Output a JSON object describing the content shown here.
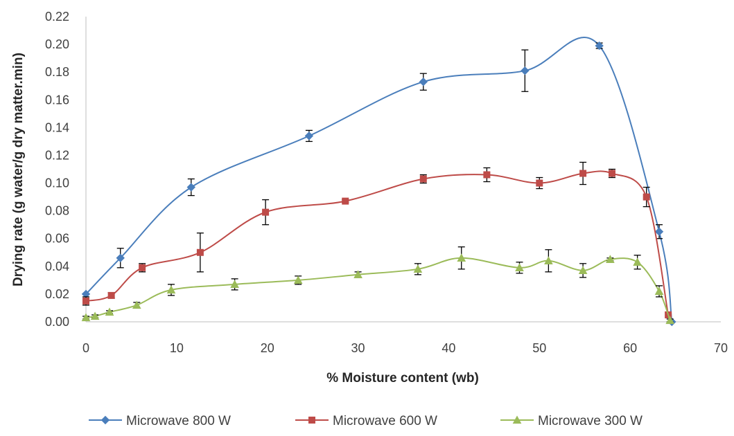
{
  "chart_data": {
    "type": "scatter",
    "title": "",
    "xlabel": "% Moisture content (wb)",
    "ylabel": "Drying rate (g water/g dry matter.min)",
    "xlim": [
      0,
      70
    ],
    "ylim": [
      0,
      0.22
    ],
    "x_ticks": [
      0,
      10,
      20,
      30,
      40,
      50,
      60,
      70
    ],
    "y_ticks": [
      0,
      0.02,
      0.04,
      0.06,
      0.08,
      0.1,
      0.12,
      0.14,
      0.16,
      0.18,
      0.2,
      0.22
    ],
    "y_tick_labels": [
      "0.00",
      "0.02",
      "0.04",
      "0.06",
      "0.08",
      "0.10",
      "0.12",
      "0.14",
      "0.16",
      "0.18",
      "0.20",
      "0.22"
    ],
    "grid": false,
    "smooth_lines": true,
    "error_bars": true,
    "legend_position": "bottom",
    "series": [
      {
        "name": "Microwave 800 W",
        "color": "#4a7ebb",
        "marker": "diamond",
        "points": [
          {
            "x": 0,
            "y": 0.02,
            "err": 0.0
          },
          {
            "x": 3.8,
            "y": 0.046,
            "err": 0.007
          },
          {
            "x": 11.6,
            "y": 0.097,
            "err": 0.006
          },
          {
            "x": 24.6,
            "y": 0.134,
            "err": 0.004
          },
          {
            "x": 37.2,
            "y": 0.173,
            "err": 0.006
          },
          {
            "x": 48.4,
            "y": 0.181,
            "err": 0.015
          },
          {
            "x": 56.6,
            "y": 0.199,
            "err": 0.002
          },
          {
            "x": 63.2,
            "y": 0.065,
            "err": 0.005
          },
          {
            "x": 64.6,
            "y": 0.0,
            "err": 0.0
          }
        ]
      },
      {
        "name": "Microwave 600 W",
        "color": "#be4b48",
        "marker": "square",
        "points": [
          {
            "x": 0,
            "y": 0.015,
            "err": 0.003
          },
          {
            "x": 2.8,
            "y": 0.019,
            "err": 0.002
          },
          {
            "x": 6.2,
            "y": 0.039,
            "err": 0.003
          },
          {
            "x": 12.6,
            "y": 0.05,
            "err": 0.014
          },
          {
            "x": 19.8,
            "y": 0.079,
            "err": 0.009
          },
          {
            "x": 28.6,
            "y": 0.087,
            "err": 0.001
          },
          {
            "x": 37.2,
            "y": 0.103,
            "err": 0.003
          },
          {
            "x": 44.2,
            "y": 0.106,
            "err": 0.005
          },
          {
            "x": 50.0,
            "y": 0.1,
            "err": 0.004
          },
          {
            "x": 54.8,
            "y": 0.107,
            "err": 0.008
          },
          {
            "x": 58.0,
            "y": 0.107,
            "err": 0.003
          },
          {
            "x": 61.8,
            "y": 0.09,
            "err": 0.007
          },
          {
            "x": 64.2,
            "y": 0.005,
            "err": 0.0
          }
        ]
      },
      {
        "name": "Microwave 300 W",
        "color": "#9bbb59",
        "marker": "triangle",
        "points": [
          {
            "x": 0,
            "y": 0.003,
            "err": 0.001
          },
          {
            "x": 1.0,
            "y": 0.004,
            "err": 0.001
          },
          {
            "x": 2.6,
            "y": 0.007,
            "err": 0.001
          },
          {
            "x": 5.6,
            "y": 0.012,
            "err": 0.002
          },
          {
            "x": 9.4,
            "y": 0.023,
            "err": 0.004
          },
          {
            "x": 16.4,
            "y": 0.027,
            "err": 0.004
          },
          {
            "x": 23.4,
            "y": 0.03,
            "err": 0.003
          },
          {
            "x": 30.0,
            "y": 0.034,
            "err": 0.002
          },
          {
            "x": 36.6,
            "y": 0.038,
            "err": 0.004
          },
          {
            "x": 41.4,
            "y": 0.046,
            "err": 0.008
          },
          {
            "x": 47.8,
            "y": 0.039,
            "err": 0.004
          },
          {
            "x": 51.0,
            "y": 0.044,
            "err": 0.008
          },
          {
            "x": 54.8,
            "y": 0.037,
            "err": 0.005
          },
          {
            "x": 57.8,
            "y": 0.045,
            "err": 0.001
          },
          {
            "x": 60.8,
            "y": 0.043,
            "err": 0.005
          },
          {
            "x": 63.2,
            "y": 0.022,
            "err": 0.004
          },
          {
            "x": 64.4,
            "y": 0.001,
            "err": 0.001
          }
        ]
      }
    ]
  }
}
